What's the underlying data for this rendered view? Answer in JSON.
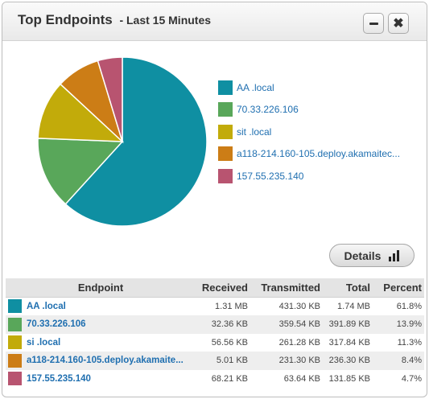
{
  "widget": {
    "title": "Top Endpoints",
    "subtitle": "- Last 15 Minutes",
    "close_symbol": "✖",
    "details_label": "Details"
  },
  "colors": {
    "teal": "#0f8fa2",
    "green": "#59a75a",
    "olive": "#c2ab0a",
    "orange": "#cc7d16",
    "rose": "#b85470"
  },
  "chart_data": {
    "type": "pie",
    "categories": [
      "AA .local",
      "70.33.226.106",
      "si .local",
      "a118-214.160-105.deploy.akamaitec...",
      "157.55.235.140"
    ],
    "values": [
      61.8,
      13.9,
      11.3,
      8.4,
      4.7
    ],
    "colors": [
      "#0f8fa2",
      "#59a75a",
      "#c2ab0a",
      "#cc7d16",
      "#b85470"
    ],
    "legend_position": "right"
  },
  "legend": [
    {
      "label": "AA                              .local",
      "color": "#0f8fa2"
    },
    {
      "label": "70.33.226.106",
      "color": "#59a75a"
    },
    {
      "label": "sit                            .local",
      "color": "#c2ab0a"
    },
    {
      "label": "a118-214.160-105.deploy.akamaitec...",
      "color": "#cc7d16"
    },
    {
      "label": "157.55.235.140",
      "color": "#b85470"
    }
  ],
  "table": {
    "headers": [
      "Endpoint",
      "Received",
      "Transmitted",
      "Total",
      "Percent"
    ],
    "rows": [
      {
        "endpoint": "AA                              .local",
        "received": "1.31 MB",
        "transmitted": "431.30 KB",
        "total": "1.74 MB",
        "percent": "61.8%",
        "color": "#0f8fa2"
      },
      {
        "endpoint": "70.33.226.106",
        "received": "32.36 KB",
        "transmitted": "359.54 KB",
        "total": "391.89 KB",
        "percent": "13.9%",
        "color": "#59a75a"
      },
      {
        "endpoint": "si                              .local",
        "received": "56.56 KB",
        "transmitted": "261.28 KB",
        "total": "317.84 KB",
        "percent": "11.3%",
        "color": "#c2ab0a"
      },
      {
        "endpoint": "a118-214.160-105.deploy.akamaite...",
        "received": "5.01 KB",
        "transmitted": "231.30 KB",
        "total": "236.30 KB",
        "percent": "8.4%",
        "color": "#cc7d16"
      },
      {
        "endpoint": "157.55.235.140",
        "received": "68.21 KB",
        "transmitted": "63.64 KB",
        "total": "131.85 KB",
        "percent": "4.7%",
        "color": "#b85470"
      }
    ]
  }
}
